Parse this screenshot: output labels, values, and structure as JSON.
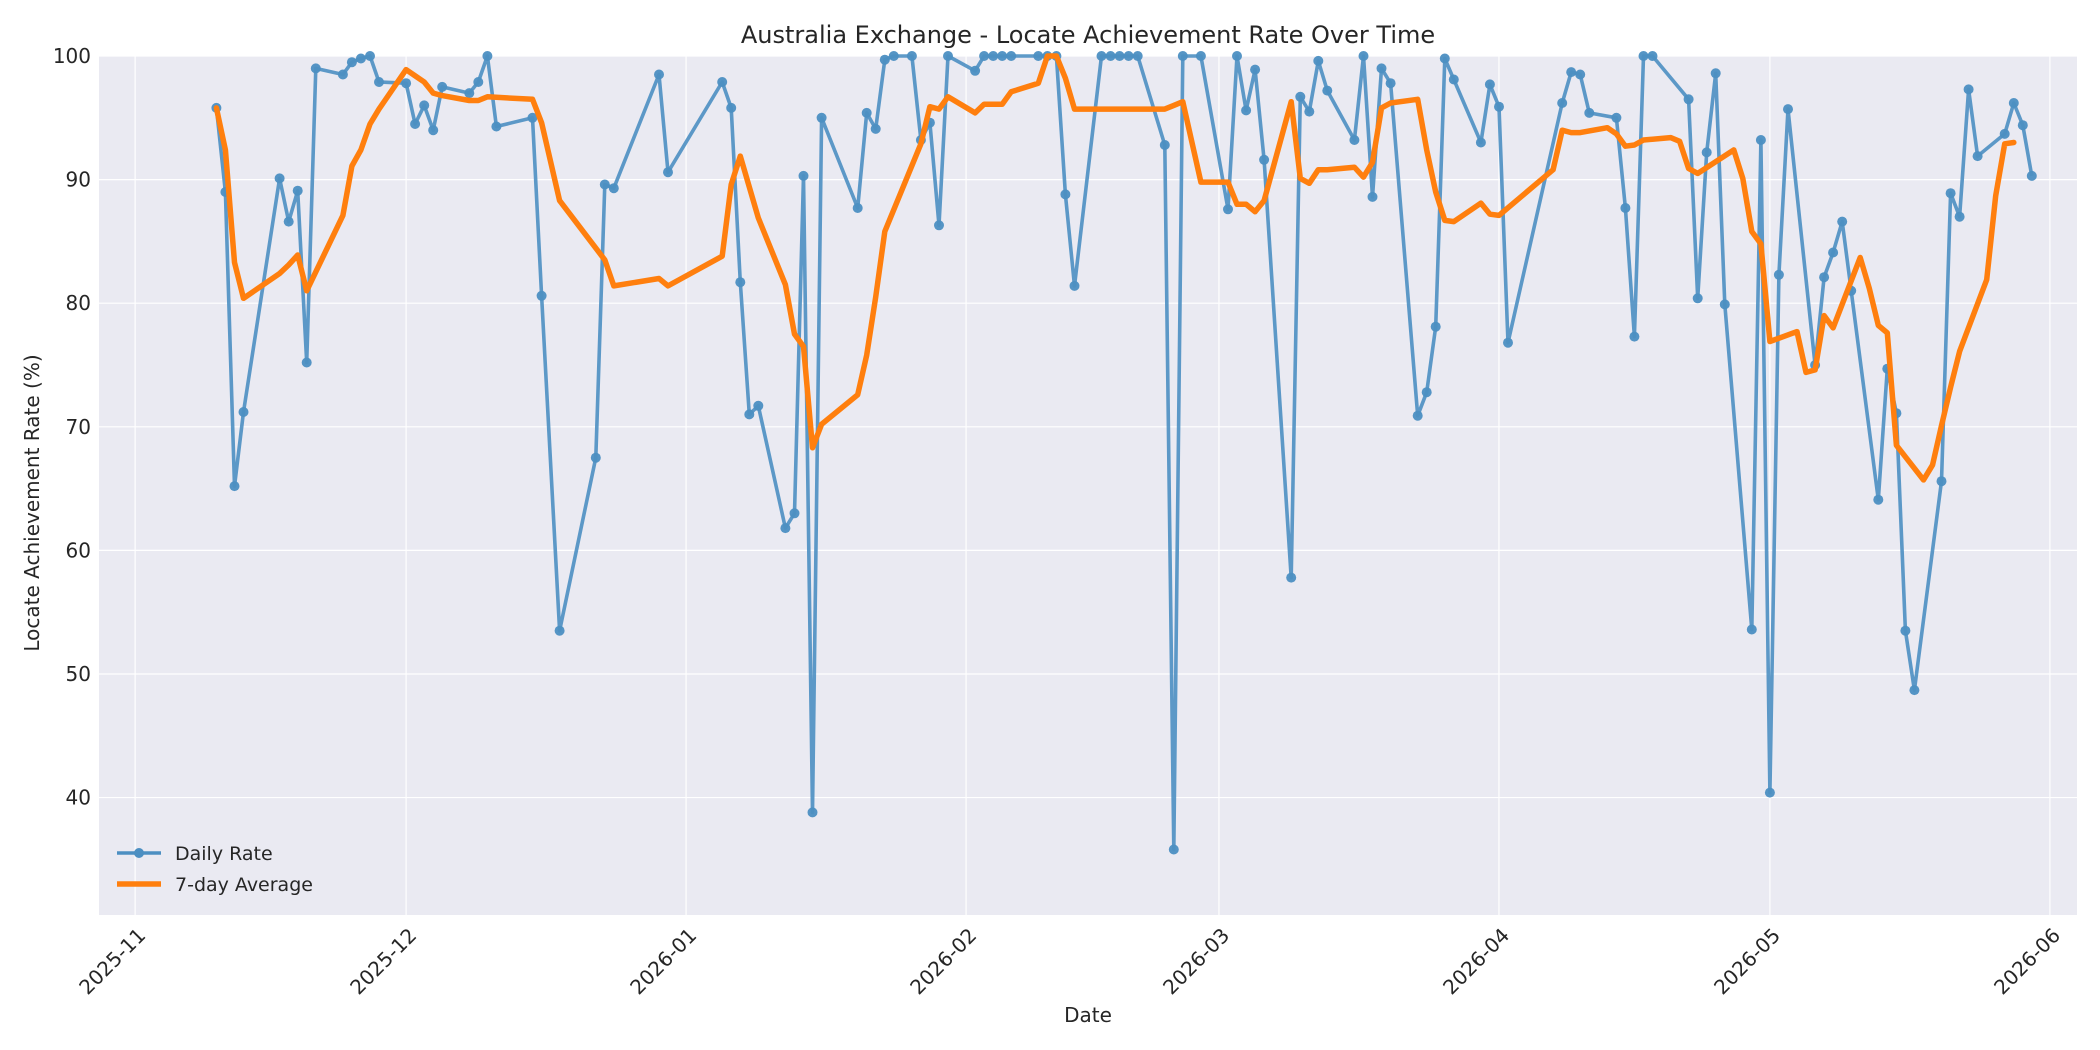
{
  "chart_data": {
    "type": "line",
    "title": "Australia Exchange - Locate Achievement Rate Over Time",
    "xlabel": "Date",
    "ylabel": "Locate Achievement Rate (%)",
    "xlim": [
      "2025-10-28",
      "2026-06-04"
    ],
    "ylim": [
      30.5,
      100
    ],
    "yticks": [
      40,
      50,
      60,
      70,
      80,
      90,
      100
    ],
    "xticks": [
      "2025-11-01",
      "2025-12-01",
      "2026-01-01",
      "2026-02-01",
      "2026-03-01",
      "2026-04-01",
      "2026-05-01",
      "2026-06-01"
    ],
    "xtick_labels": [
      "2025-11",
      "2025-12",
      "2026-01",
      "2026-02",
      "2026-03",
      "2026-04",
      "2026-05",
      "2026-06"
    ],
    "grid": true,
    "legend_position": "lower-left",
    "colors": {
      "daily": "#4c8fc2",
      "avg": "#ff7f0e",
      "plot_bg": "#eaeaf2"
    },
    "series": [
      {
        "name": "Daily Rate",
        "style": "line-markers",
        "x": [
          "2025-11-10",
          "2025-11-11",
          "2025-11-12",
          "2025-11-13",
          "2025-11-17",
          "2025-11-18",
          "2025-11-19",
          "2025-11-20",
          "2025-11-21",
          "2025-11-24",
          "2025-11-25",
          "2025-11-26",
          "2025-11-27",
          "2025-11-28",
          "2025-12-01",
          "2025-12-02",
          "2025-12-03",
          "2025-12-04",
          "2025-12-05",
          "2025-12-08",
          "2025-12-09",
          "2025-12-10",
          "2025-12-11",
          "2025-12-15",
          "2025-12-16",
          "2025-12-18",
          "2025-12-22",
          "2025-12-23",
          "2025-12-24",
          "2025-12-29",
          "2025-12-30",
          "2026-01-05",
          "2026-01-06",
          "2026-01-07",
          "2026-01-08",
          "2026-01-09",
          "2026-01-12",
          "2026-01-13",
          "2026-01-14",
          "2026-01-15",
          "2026-01-16",
          "2026-01-20",
          "2026-01-21",
          "2026-01-22",
          "2026-01-23",
          "2026-01-24",
          "2026-01-26",
          "2026-01-27",
          "2026-01-28",
          "2026-01-29",
          "2026-01-30",
          "2026-02-02",
          "2026-02-03",
          "2026-02-04",
          "2026-02-05",
          "2026-02-06",
          "2026-02-09",
          "2026-02-10",
          "2026-02-11",
          "2026-02-12",
          "2026-02-13",
          "2026-02-16",
          "2026-02-17",
          "2026-02-18",
          "2026-02-19",
          "2026-02-20",
          "2026-02-23",
          "2026-02-24",
          "2026-02-25",
          "2026-02-27",
          "2026-03-02",
          "2026-03-03",
          "2026-03-04",
          "2026-03-05",
          "2026-03-06",
          "2026-03-09",
          "2026-03-10",
          "2026-03-11",
          "2026-03-12",
          "2026-03-13",
          "2026-03-16",
          "2026-03-17",
          "2026-03-18",
          "2026-03-19",
          "2026-03-20",
          "2026-03-23",
          "2026-03-24",
          "2026-03-25",
          "2026-03-26",
          "2026-03-27",
          "2026-03-30",
          "2026-03-31",
          "2026-04-01",
          "2026-04-02",
          "2026-04-08",
          "2026-04-09",
          "2026-04-10",
          "2026-04-11",
          "2026-04-14",
          "2026-04-15",
          "2026-04-16",
          "2026-04-17",
          "2026-04-18",
          "2026-04-22",
          "2026-04-23",
          "2026-04-24",
          "2026-04-25",
          "2026-04-26",
          "2026-04-29",
          "2026-04-30",
          "2026-05-01",
          "2026-05-02",
          "2026-05-03",
          "2026-05-06",
          "2026-05-07",
          "2026-05-08",
          "2026-05-09",
          "2026-05-10",
          "2026-05-13",
          "2026-05-14",
          "2026-05-15",
          "2026-05-16",
          "2026-05-17",
          "2026-05-20",
          "2026-05-21",
          "2026-05-22",
          "2026-05-23",
          "2026-05-24",
          "2026-05-27",
          "2026-05-28",
          "2026-05-29",
          "2026-05-30"
        ],
        "y": [
          95.8,
          89.0,
          65.2,
          71.2,
          90.1,
          86.6,
          89.1,
          75.2,
          99.0,
          98.5,
          99.5,
          99.8,
          100.0,
          97.9,
          97.8,
          94.5,
          96.0,
          94.0,
          97.5,
          97.0,
          97.9,
          100.0,
          94.3,
          95.0,
          80.6,
          53.5,
          67.5,
          89.6,
          89.3,
          98.5,
          90.6,
          97.9,
          95.8,
          81.7,
          71.0,
          71.7,
          61.8,
          63.0,
          90.3,
          38.8,
          95.0,
          87.7,
          95.4,
          94.1,
          99.7,
          100.0,
          100.0,
          93.2,
          94.6,
          86.3,
          100.0,
          98.8,
          100.0,
          100.0,
          100.0,
          100.0,
          100.0,
          100.0,
          100.0,
          88.8,
          81.4,
          100.0,
          100.0,
          100.0,
          100.0,
          100.0,
          92.8,
          35.8,
          100.0,
          100.0,
          87.6,
          100.0,
          95.6,
          98.9,
          91.6,
          57.8,
          96.7,
          95.5,
          99.6,
          97.2,
          93.2,
          100.0,
          88.6,
          99.0,
          97.8,
          70.9,
          72.8,
          78.1,
          99.8,
          98.1,
          93.0,
          97.7,
          95.9,
          76.8,
          96.2,
          98.7,
          98.5,
          95.4,
          95.0,
          87.7,
          77.3,
          100.0,
          100.0,
          96.5,
          80.4,
          92.2,
          98.6,
          79.9,
          53.6,
          93.2,
          40.4,
          82.3,
          95.7,
          75.0,
          82.1,
          84.1,
          86.6,
          81.0,
          64.1,
          74.7,
          71.1,
          53.5,
          48.7,
          65.6,
          88.9,
          87.0,
          97.3,
          91.9,
          93.7,
          96.2,
          94.4,
          90.3
        ]
      },
      {
        "name": "7-day Average",
        "style": "line",
        "x": [
          "2025-11-10",
          "2025-11-11",
          "2025-11-12",
          "2025-11-13",
          "2025-11-17",
          "2025-11-18",
          "2025-11-19",
          "2025-11-20",
          "2025-11-24",
          "2025-11-25",
          "2025-11-26",
          "2025-11-27",
          "2025-11-28",
          "2025-12-01",
          "2025-12-02",
          "2025-12-03",
          "2025-12-04",
          "2025-12-05",
          "2025-12-08",
          "2025-12-09",
          "2025-12-10",
          "2025-12-15",
          "2025-12-16",
          "2025-12-18",
          "2025-12-23",
          "2025-12-24",
          "2025-12-29",
          "2025-12-30",
          "2026-01-05",
          "2026-01-06",
          "2026-01-07",
          "2026-01-09",
          "2026-01-12",
          "2026-01-13",
          "2026-01-14",
          "2026-01-15",
          "2026-01-16",
          "2026-01-20",
          "2026-01-21",
          "2026-01-22",
          "2026-01-23",
          "2026-01-27",
          "2026-01-28",
          "2026-01-29",
          "2026-01-30",
          "2026-02-02",
          "2026-02-03",
          "2026-02-05",
          "2026-02-06",
          "2026-02-09",
          "2026-02-10",
          "2026-02-11",
          "2026-02-12",
          "2026-02-13",
          "2026-02-20",
          "2026-02-23",
          "2026-02-24",
          "2026-02-25",
          "2026-02-27",
          "2026-03-02",
          "2026-03-03",
          "2026-03-04",
          "2026-03-05",
          "2026-03-06",
          "2026-03-09",
          "2026-03-10",
          "2026-03-11",
          "2026-03-12",
          "2026-03-13",
          "2026-03-16",
          "2026-03-17",
          "2026-03-18",
          "2026-03-19",
          "2026-03-20",
          "2026-03-23",
          "2026-03-24",
          "2026-03-25",
          "2026-03-26",
          "2026-03-27",
          "2026-03-30",
          "2026-03-31",
          "2026-04-01",
          "2026-04-07",
          "2026-04-08",
          "2026-04-09",
          "2026-04-10",
          "2026-04-13",
          "2026-04-14",
          "2026-04-15",
          "2026-04-16",
          "2026-04-17",
          "2026-04-20",
          "2026-04-21",
          "2026-04-22",
          "2026-04-23",
          "2026-04-27",
          "2026-04-28",
          "2026-04-29",
          "2026-04-30",
          "2026-05-01",
          "2026-05-04",
          "2026-05-05",
          "2026-05-06",
          "2026-05-07",
          "2026-05-08",
          "2026-05-11",
          "2026-05-12",
          "2026-05-13",
          "2026-05-14",
          "2026-05-15",
          "2026-05-18",
          "2026-05-19",
          "2026-05-20",
          "2026-05-21",
          "2026-05-22",
          "2026-05-25",
          "2026-05-26",
          "2026-05-27",
          "2026-05-28"
        ],
        "y": [
          95.8,
          92.4,
          83.3,
          80.4,
          82.4,
          83.1,
          83.9,
          81.0,
          87.1,
          91.1,
          92.4,
          94.5,
          95.7,
          98.9,
          98.4,
          97.9,
          97.0,
          96.8,
          96.4,
          96.4,
          96.7,
          96.5,
          94.6,
          88.3,
          83.5,
          81.4,
          82.0,
          81.4,
          83.8,
          89.6,
          91.9,
          86.9,
          81.5,
          77.5,
          76.5,
          68.3,
          70.2,
          72.6,
          75.8,
          80.5,
          85.8,
          92.9,
          95.9,
          95.7,
          96.7,
          95.4,
          96.1,
          96.1,
          97.1,
          97.8,
          100.0,
          100.0,
          98.2,
          95.7,
          95.7,
          95.7,
          96.0,
          96.3,
          89.8,
          89.8,
          88.0,
          88.0,
          87.4,
          88.3,
          96.3,
          90.1,
          89.7,
          90.8,
          90.8,
          91.0,
          90.2,
          91.4,
          95.8,
          96.2,
          96.5,
          92.4,
          89.0,
          86.7,
          86.6,
          88.1,
          87.2,
          87.1,
          90.8,
          94.0,
          93.8,
          93.8,
          94.2,
          93.7,
          92.7,
          92.8,
          93.2,
          93.4,
          93.1,
          90.9,
          90.5,
          92.4,
          90.1,
          85.8,
          84.8,
          76.9,
          77.7,
          74.4,
          74.6,
          79.0,
          78.0,
          83.7,
          81.2,
          78.2,
          77.6,
          68.5,
          65.7,
          66.9,
          70.1,
          73.2,
          76.1,
          81.9,
          88.7,
          92.9,
          93.0
        ]
      }
    ]
  }
}
